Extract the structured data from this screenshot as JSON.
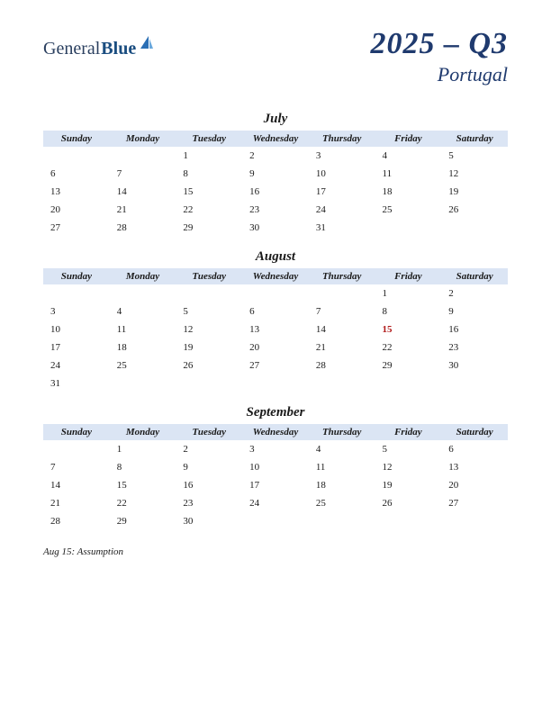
{
  "logo": {
    "part1": "General",
    "part2": "Blue"
  },
  "title": {
    "main": "2025 – Q3",
    "sub": "Portugal"
  },
  "day_headers": [
    "Sunday",
    "Monday",
    "Tuesday",
    "Wednesday",
    "Thursday",
    "Friday",
    "Saturday"
  ],
  "header_bg": "#dbe5f4",
  "title_color": "#1f3a6e",
  "holiday_color": "#b01818",
  "months": [
    {
      "name": "July",
      "weeks": [
        [
          "",
          "",
          "1",
          "2",
          "3",
          "4",
          "5"
        ],
        [
          "6",
          "7",
          "8",
          "9",
          "10",
          "11",
          "12"
        ],
        [
          "13",
          "14",
          "15",
          "16",
          "17",
          "18",
          "19"
        ],
        [
          "20",
          "21",
          "22",
          "23",
          "24",
          "25",
          "26"
        ],
        [
          "27",
          "28",
          "29",
          "30",
          "31",
          "",
          ""
        ]
      ],
      "holidays": []
    },
    {
      "name": "August",
      "weeks": [
        [
          "",
          "",
          "",
          "",
          "",
          "1",
          "2"
        ],
        [
          "3",
          "4",
          "5",
          "6",
          "7",
          "8",
          "9"
        ],
        [
          "10",
          "11",
          "12",
          "13",
          "14",
          "15",
          "16"
        ],
        [
          "17",
          "18",
          "19",
          "20",
          "21",
          "22",
          "23"
        ],
        [
          "24",
          "25",
          "26",
          "27",
          "28",
          "29",
          "30"
        ],
        [
          "31",
          "",
          "",
          "",
          "",
          "",
          ""
        ]
      ],
      "holidays": [
        "15"
      ]
    },
    {
      "name": "September",
      "weeks": [
        [
          "",
          "1",
          "2",
          "3",
          "4",
          "5",
          "6"
        ],
        [
          "7",
          "8",
          "9",
          "10",
          "11",
          "12",
          "13"
        ],
        [
          "14",
          "15",
          "16",
          "17",
          "18",
          "19",
          "20"
        ],
        [
          "21",
          "22",
          "23",
          "24",
          "25",
          "26",
          "27"
        ],
        [
          "28",
          "29",
          "30",
          "",
          "",
          "",
          ""
        ]
      ],
      "holidays": []
    }
  ],
  "notes": "Aug 15: Assumption"
}
